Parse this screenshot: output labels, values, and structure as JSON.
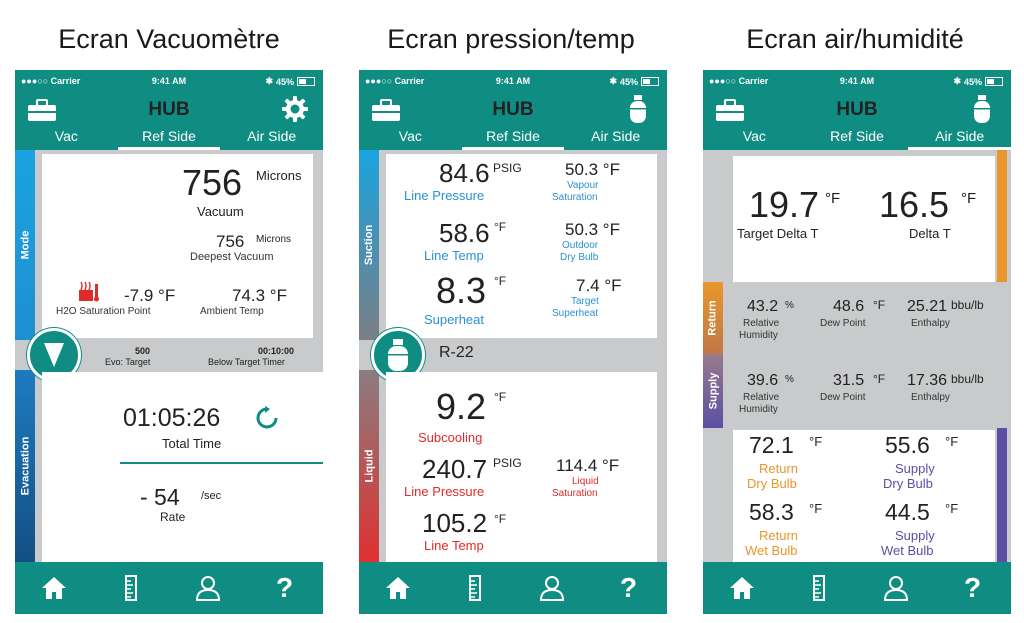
{
  "captions": [
    "Ecran Vacuomètre",
    "Ecran pression/temp",
    "Ecran air/humidité"
  ],
  "status": {
    "carrier": "●●●○○ Carrier",
    "time": "9:41 AM",
    "battery": "45%"
  },
  "header_title": "HUB",
  "tabs": [
    "Vac",
    "Ref Side",
    "Air Side"
  ],
  "colors": {
    "teal": "#0f8d83",
    "blue": "#2a90d0",
    "red": "#e02a2a",
    "orange": "#e9962a",
    "purple": "#5a4fa5"
  },
  "vac": {
    "mode_label": "Mode",
    "evac_label": "Evacuation",
    "vacuum_value": "756",
    "vacuum_unit": "Microns",
    "vacuum_label": "Vacuum",
    "deepest_value": "756",
    "deepest_unit": "Microns",
    "deepest_label": "Deepest Vacuum",
    "h2o_value": "-7.9 °F",
    "h2o_label": "H2O Saturation Point",
    "ambient_value": "74.3 °F",
    "ambient_label": "Ambient Temp",
    "target_value": "500",
    "target_label": "Evo: Target",
    "timer_value": "00:10:00",
    "timer_label": "Below Target Timer",
    "total_time": "01:05:26",
    "total_time_label": "Total Time",
    "rate_value": "- 54",
    "rate_unit": "/sec",
    "rate_label": "Rate"
  },
  "ref": {
    "suction_label": "Suction",
    "liquid_label": "Liquid",
    "refrigerant": "R-22",
    "line_pressure_value": "84.6",
    "line_pressure_unit": "PSIG",
    "line_pressure_label": "Line Pressure",
    "vapour_value": "50.3 °F",
    "vapour_label1": "Vapour",
    "vapour_label2": "Saturation",
    "line_temp_value": "58.6",
    "line_temp_unit": "°F",
    "line_temp_label": "Line Temp",
    "outdoor_value": "50.3 °F",
    "outdoor_label1": "Outdoor",
    "outdoor_label2": "Dry Bulb",
    "superheat_value": "8.3",
    "superheat_unit": "°F",
    "superheat_label": "Superheat",
    "target_sh_value": "7.4 °F",
    "target_sh_label1": "Target",
    "target_sh_label2": "Superheat",
    "subcooling_value": "9.2",
    "subcooling_unit": "°F",
    "subcooling_label": "Subcooling",
    "liq_pressure_value": "240.7",
    "liq_pressure_unit": "PSIG",
    "liq_pressure_label": "Line Pressure",
    "liq_sat_value": "114.4 °F",
    "liq_sat_label1": "Liquid",
    "liq_sat_label2": "Saturation",
    "liq_temp_value": "105.2",
    "liq_temp_unit": "°F",
    "liq_temp_label": "Line Temp"
  },
  "air": {
    "return_label": "Return",
    "supply_label": "Supply",
    "target_delta_value": "19.7",
    "target_delta_unit": "°F",
    "target_delta_label": "Target Delta T",
    "delta_value": "16.5",
    "delta_unit": "°F",
    "delta_label": "Delta T",
    "ret_rh_value": "43.2",
    "ret_rh_unit": "%",
    "rh_label1": "Relative",
    "rh_label2": "Humidity",
    "ret_dew_value": "48.6",
    "ret_dew_unit": "°F",
    "dew_label": "Dew Point",
    "ret_enth_value": "25.21",
    "ret_enth_unit": "bbu/lb",
    "enth_label": "Enthalpy",
    "sup_rh_value": "39.6",
    "sup_rh_unit": "%",
    "sup_dew_value": "31.5",
    "sup_dew_unit": "°F",
    "sup_enth_value": "17.36",
    "sup_enth_unit": "bbu/lb",
    "ret_db_value": "72.1",
    "ret_db_unit": "°F",
    "ret_db_label1": "Return",
    "ret_db_label2": "Dry Bulb",
    "sup_db_value": "55.6",
    "sup_db_unit": "°F",
    "sup_db_label1": "Supply",
    "sup_db_label2": "Dry Bulb",
    "ret_wb_value": "58.3",
    "ret_wb_unit": "°F",
    "ret_wb_label1": "Return",
    "ret_wb_label2": "Wet Bulb",
    "sup_wb_value": "44.5",
    "sup_wb_unit": "°F",
    "sup_wb_label1": "Supply",
    "sup_wb_label2": "Wet Bulb"
  },
  "nav_icons": [
    "home-icon",
    "ruler-icon",
    "user-icon",
    "help-icon"
  ],
  "help_glyph": "?"
}
